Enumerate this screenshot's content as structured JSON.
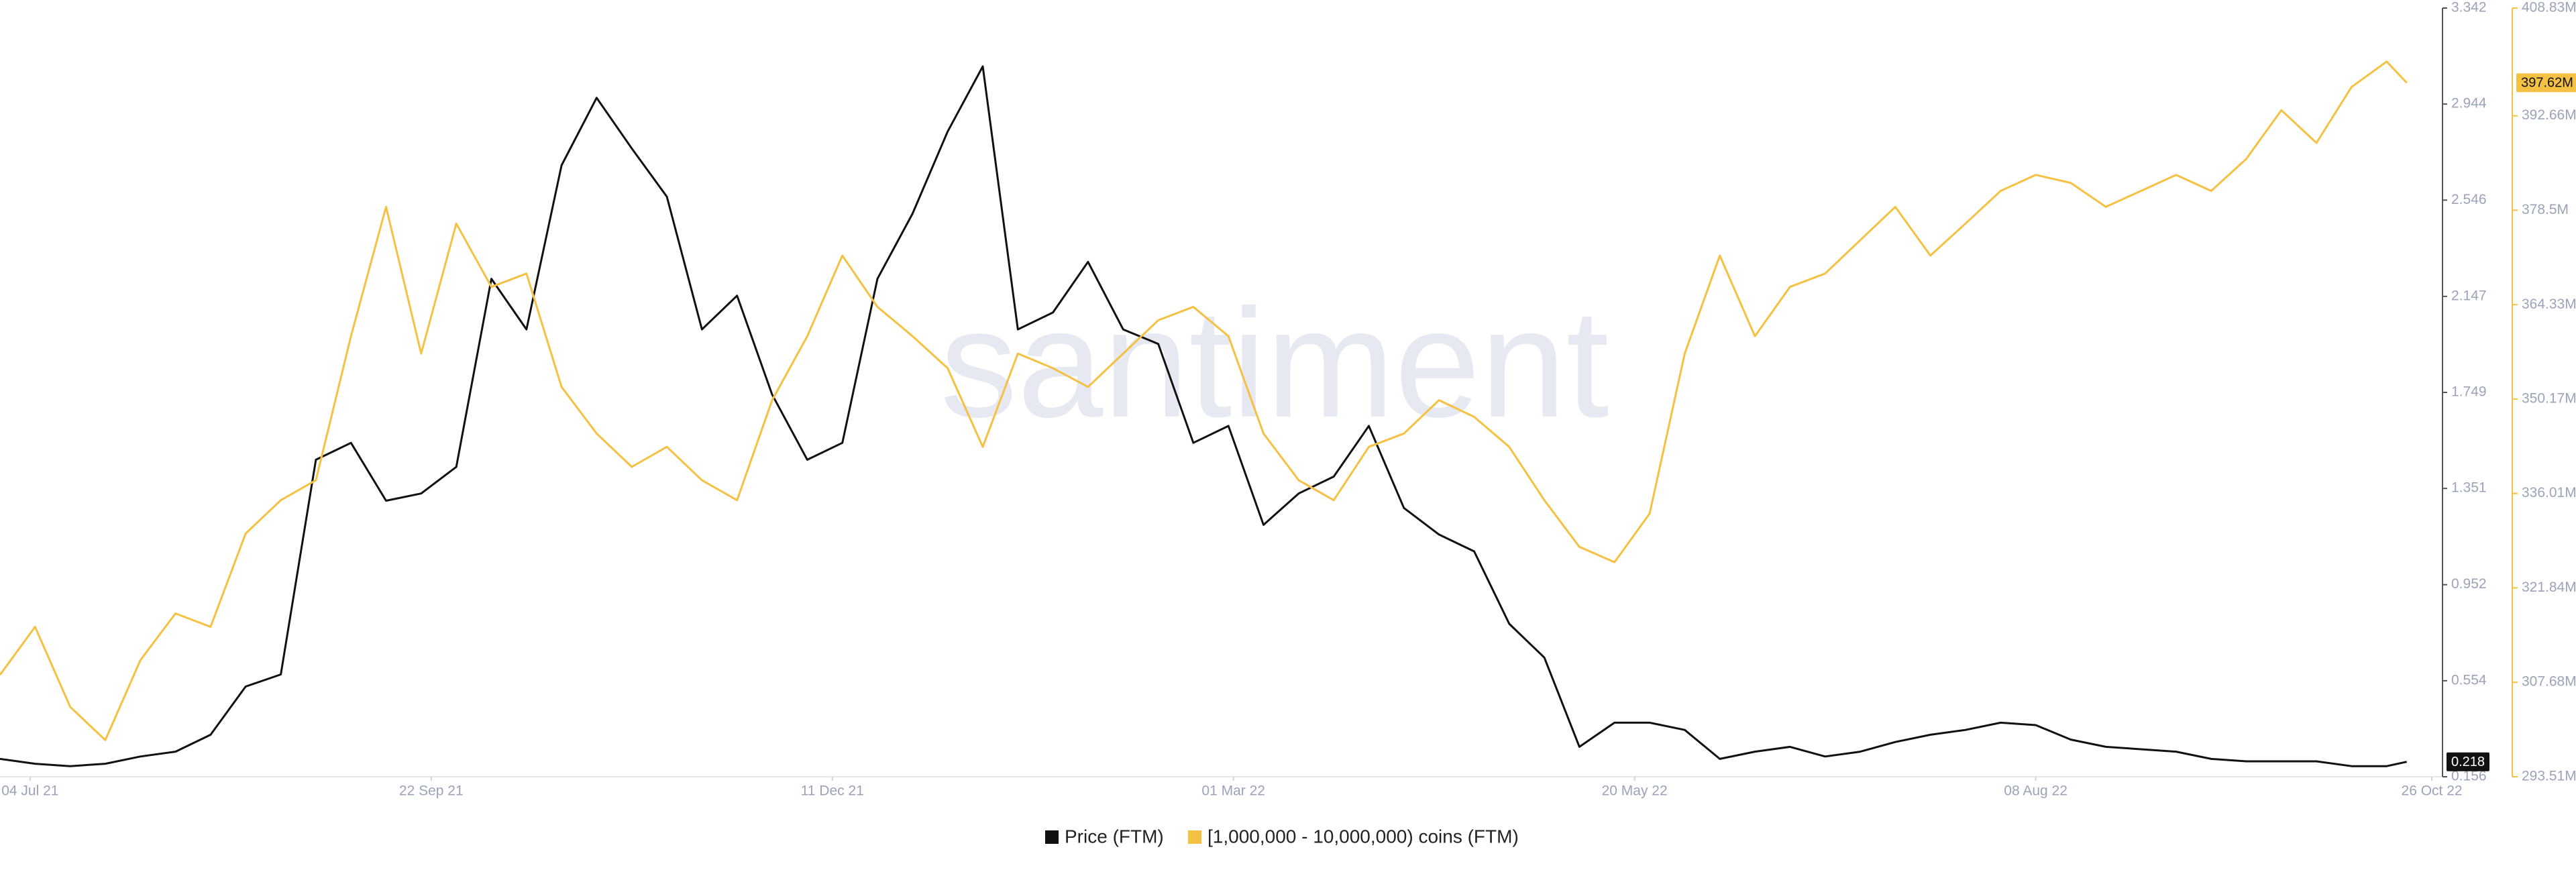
{
  "chart_data": {
    "type": "line",
    "watermark": "santiment",
    "x": [
      "2021-06-28",
      "2021-07-05",
      "2021-07-12",
      "2021-07-19",
      "2021-07-26",
      "2021-08-02",
      "2021-08-09",
      "2021-08-16",
      "2021-08-23",
      "2021-08-30",
      "2021-09-06",
      "2021-09-13",
      "2021-09-20",
      "2021-09-27",
      "2021-10-04",
      "2021-10-11",
      "2021-10-18",
      "2021-10-25",
      "2021-11-01",
      "2021-11-08",
      "2021-11-15",
      "2021-11-22",
      "2021-11-29",
      "2021-12-06",
      "2021-12-13",
      "2021-12-20",
      "2021-12-27",
      "2022-01-03",
      "2022-01-10",
      "2022-01-17",
      "2022-01-24",
      "2022-01-31",
      "2022-02-07",
      "2022-02-14",
      "2022-02-21",
      "2022-02-28",
      "2022-03-07",
      "2022-03-14",
      "2022-03-21",
      "2022-03-28",
      "2022-04-04",
      "2022-04-11",
      "2022-04-18",
      "2022-04-25",
      "2022-05-02",
      "2022-05-09",
      "2022-05-16",
      "2022-05-23",
      "2022-05-30",
      "2022-06-06",
      "2022-06-13",
      "2022-06-20",
      "2022-06-27",
      "2022-07-04",
      "2022-07-11",
      "2022-07-18",
      "2022-07-25",
      "2022-08-01",
      "2022-08-08",
      "2022-08-15",
      "2022-08-22",
      "2022-08-29",
      "2022-09-05",
      "2022-09-12",
      "2022-09-19",
      "2022-09-26",
      "2022-10-03",
      "2022-10-10",
      "2022-10-17",
      "2022-10-21"
    ],
    "xlim": [
      "2021-06-28",
      "2022-10-28"
    ],
    "xticks": [
      {
        "value": "2021-07-04",
        "label": "04 Jul 21"
      },
      {
        "value": "2021-09-22",
        "label": "22 Sep 21"
      },
      {
        "value": "2021-12-11",
        "label": "11 Dec 21"
      },
      {
        "value": "2022-03-01",
        "label": "01 Mar 22"
      },
      {
        "value": "2022-05-20",
        "label": "20 May 22"
      },
      {
        "value": "2022-08-08",
        "label": "08 Aug 22"
      },
      {
        "value": "2022-10-26",
        "label": "26 Oct 22"
      }
    ],
    "ylim": [
      0.156,
      3.342
    ],
    "yticks": [
      0.156,
      0.554,
      0.952,
      1.351,
      1.749,
      2.147,
      2.546,
      2.944,
      3.342
    ],
    "y2lim": [
      293510000,
      408830000
    ],
    "y2ticks": [
      {
        "value": 293510000,
        "label": "293.51M"
      },
      {
        "value": 307680000,
        "label": "307.68M"
      },
      {
        "value": 321840000,
        "label": "321.84M"
      },
      {
        "value": 336010000,
        "label": "336.01M"
      },
      {
        "value": 350170000,
        "label": "350.17M"
      },
      {
        "value": 364330000,
        "label": "364.33M"
      },
      {
        "value": 378500000,
        "label": "378.5M"
      },
      {
        "value": 392660000,
        "label": "392.66M"
      },
      {
        "value": 408830000,
        "label": "408.83M"
      }
    ],
    "grid": false,
    "legend": "bottom",
    "series": [
      {
        "name": "Price (FTM)",
        "color": "#111111",
        "axis": "y",
        "values": [
          0.23,
          0.21,
          0.2,
          0.21,
          0.24,
          0.26,
          0.33,
          0.53,
          0.58,
          1.47,
          1.54,
          1.3,
          1.33,
          1.44,
          2.22,
          2.01,
          2.69,
          2.97,
          2.76,
          2.56,
          2.01,
          2.15,
          1.74,
          1.47,
          1.54,
          2.22,
          2.49,
          2.83,
          3.1,
          2.01,
          2.08,
          2.29,
          2.01,
          1.95,
          1.54,
          1.61,
          1.2,
          1.33,
          1.4,
          1.61,
          1.27,
          1.16,
          1.09,
          0.79,
          0.65,
          0.28,
          0.38,
          0.38,
          0.35,
          0.23,
          0.26,
          0.28,
          0.24,
          0.26,
          0.3,
          0.33,
          0.35,
          0.38,
          0.37,
          0.31,
          0.28,
          0.27,
          0.26,
          0.23,
          0.22,
          0.22,
          0.22,
          0.2,
          0.2,
          0.218
        ],
        "value_labels": [
          null,
          null,
          null,
          null,
          null,
          null,
          null,
          null,
          null,
          null,
          null,
          null,
          null,
          null,
          null,
          null,
          null,
          null,
          null,
          null,
          null,
          null,
          null,
          null,
          null,
          null,
          null,
          null,
          null,
          null,
          null,
          null,
          null,
          null,
          null,
          null,
          null,
          null,
          null,
          null,
          null,
          null,
          null,
          null,
          null,
          null,
          null,
          null,
          null,
          null,
          null,
          null,
          null,
          null,
          null,
          null,
          null,
          null,
          null,
          null,
          null,
          null,
          null,
          null,
          null,
          null,
          null,
          null,
          null,
          "0.218"
        ]
      },
      {
        "name": "[1,000,000 - 10,000,000) coins (FTM)",
        "color": "#f5c142",
        "axis": "y2",
        "values": [
          308800000,
          316000000,
          304000000,
          299000000,
          311000000,
          318000000,
          316000000,
          330000000,
          335000000,
          338000000,
          359600000,
          379000000,
          357000000,
          376500000,
          367000000,
          369000000,
          352000000,
          345000000,
          340000000,
          343000000,
          338000000,
          335000000,
          350000000,
          359600000,
          371700000,
          364000000,
          359600000,
          354800000,
          343000000,
          357000000,
          354800000,
          352000000,
          357000000,
          362000000,
          364000000,
          359600000,
          345000000,
          338000000,
          335000000,
          343000000,
          345000000,
          350000000,
          347500000,
          343000000,
          335000000,
          328000000,
          325700000,
          333000000,
          357000000,
          371700000,
          359600000,
          367000000,
          369000000,
          374000000,
          379000000,
          371700000,
          376500000,
          381400000,
          383800000,
          382600000,
          379000000,
          381400000,
          383800000,
          381400000,
          386200000,
          393500000,
          388600000,
          397000000,
          400800000,
          397620000
        ],
        "value_labels": [
          null,
          null,
          null,
          null,
          null,
          null,
          null,
          null,
          null,
          null,
          null,
          null,
          null,
          null,
          null,
          null,
          null,
          null,
          null,
          null,
          null,
          null,
          null,
          null,
          null,
          null,
          null,
          null,
          null,
          null,
          null,
          null,
          null,
          null,
          null,
          null,
          null,
          null,
          null,
          null,
          null,
          null,
          null,
          null,
          null,
          null,
          null,
          null,
          null,
          null,
          null,
          null,
          null,
          null,
          null,
          null,
          null,
          null,
          null,
          null,
          null,
          null,
          null,
          null,
          null,
          null,
          null,
          null,
          null,
          "397.62M"
        ]
      }
    ]
  }
}
